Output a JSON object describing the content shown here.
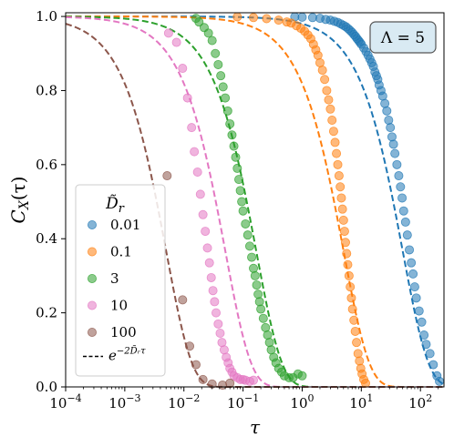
{
  "chart_data": {
    "type": "scatter",
    "xlabel": "τ",
    "ylabel": "C",
    "ylabel_sub": "X",
    "ylabel_arg": "(τ)",
    "xscale": "log",
    "xlim": [
      0.0001,
      250
    ],
    "ylim": [
      0.0,
      1.01
    ],
    "x_ticks": [
      {
        "base": "10",
        "exp": "−4",
        "value": 0.0001
      },
      {
        "base": "10",
        "exp": "−3",
        "value": 0.001
      },
      {
        "base": "10",
        "exp": "−2",
        "value": 0.01
      },
      {
        "base": "10",
        "exp": "−1",
        "value": 0.1
      },
      {
        "base": "10",
        "exp": "0",
        "value": 1
      },
      {
        "base": "10",
        "exp": "1",
        "value": 10
      },
      {
        "base": "10",
        "exp": "2",
        "value": 100
      }
    ],
    "y_ticks": [
      "0.0",
      "0.2",
      "0.4",
      "0.6",
      "0.8",
      "1.0"
    ],
    "legend": {
      "title": "D̃",
      "title_sub": "r",
      "location": "lower-left",
      "theory_label": "e",
      "theory_exp": "−2D̃ᵣτ"
    },
    "annotation": "Λ = 5",
    "theory_form": "exp(-2*Dr*tau)",
    "series": [
      {
        "name": "0.01",
        "Dr": 0.01,
        "color": "#1f77b4",
        "points": [
          [
            0.75,
            0.999
          ],
          [
            1.0,
            0.998
          ],
          [
            1.5,
            0.997
          ],
          [
            2.0,
            0.995
          ],
          [
            2.5,
            0.992
          ],
          [
            3.0,
            0.99
          ],
          [
            3.5,
            0.987
          ],
          [
            4.0,
            0.984
          ],
          [
            4.5,
            0.98
          ],
          [
            5.0,
            0.976
          ],
          [
            5.5,
            0.972
          ],
          [
            6.0,
            0.967
          ],
          [
            6.5,
            0.962
          ],
          [
            7.0,
            0.957
          ],
          [
            7.5,
            0.951
          ],
          [
            8.0,
            0.946
          ],
          [
            8.5,
            0.94
          ],
          [
            9.0,
            0.935
          ],
          [
            9.5,
            0.93
          ],
          [
            10.0,
            0.925
          ],
          [
            11.0,
            0.915
          ],
          [
            12.0,
            0.905
          ],
          [
            13.0,
            0.895
          ],
          [
            14.0,
            0.885
          ],
          [
            15.0,
            0.875
          ],
          [
            16.0,
            0.865
          ],
          [
            17.0,
            0.85
          ],
          [
            18.0,
            0.84
          ],
          [
            19.0,
            0.83
          ],
          [
            20.0,
            0.815
          ],
          [
            21.5,
            0.8
          ],
          [
            23.0,
            0.785
          ],
          [
            25.0,
            0.765
          ],
          [
            27.0,
            0.745
          ],
          [
            29.0,
            0.72
          ],
          [
            31.0,
            0.7
          ],
          [
            33.0,
            0.675
          ],
          [
            35.0,
            0.655
          ],
          [
            37.0,
            0.63
          ],
          [
            40.0,
            0.6
          ],
          [
            43.0,
            0.57
          ],
          [
            46.0,
            0.54
          ],
          [
            49.0,
            0.51
          ],
          [
            52.0,
            0.475
          ],
          [
            56.0,
            0.445
          ],
          [
            60.0,
            0.41
          ],
          [
            65.0,
            0.37
          ],
          [
            70.0,
            0.335
          ],
          [
            75.0,
            0.305
          ],
          [
            80.0,
            0.27
          ],
          [
            85.0,
            0.24
          ],
          [
            95.0,
            0.205
          ],
          [
            105.0,
            0.175
          ],
          [
            115.0,
            0.14
          ],
          [
            125.0,
            0.115
          ],
          [
            145.0,
            0.09
          ],
          [
            165.0,
            0.06
          ],
          [
            190.0,
            0.03
          ],
          [
            210.0,
            0.015
          ]
        ]
      },
      {
        "name": "0.1",
        "Dr": 0.1,
        "color": "#ff7f0e",
        "points": [
          [
            0.08,
            0.999
          ],
          [
            0.15,
            0.997
          ],
          [
            0.25,
            0.994
          ],
          [
            0.4,
            0.99
          ],
          [
            0.55,
            0.985
          ],
          [
            0.65,
            0.982
          ],
          [
            0.8,
            0.975
          ],
          [
            0.95,
            0.968
          ],
          [
            1.1,
            0.96
          ],
          [
            1.25,
            0.95
          ],
          [
            1.4,
            0.94
          ],
          [
            1.55,
            0.925
          ],
          [
            1.7,
            0.91
          ],
          [
            1.85,
            0.895
          ],
          [
            2.0,
            0.875
          ],
          [
            2.2,
            0.855
          ],
          [
            2.4,
            0.83
          ],
          [
            2.6,
            0.8
          ],
          [
            2.8,
            0.775
          ],
          [
            3.0,
            0.75
          ],
          [
            3.2,
            0.72
          ],
          [
            3.4,
            0.69
          ],
          [
            3.6,
            0.66
          ],
          [
            3.8,
            0.63
          ],
          [
            4.0,
            0.6
          ],
          [
            4.2,
            0.57
          ],
          [
            4.4,
            0.54
          ],
          [
            4.6,
            0.51
          ],
          [
            4.8,
            0.48
          ],
          [
            5.0,
            0.45
          ],
          [
            5.2,
            0.42
          ],
          [
            5.4,
            0.39
          ],
          [
            5.65,
            0.36
          ],
          [
            5.9,
            0.33
          ],
          [
            6.2,
            0.3
          ],
          [
            6.5,
            0.27
          ],
          [
            6.8,
            0.24
          ],
          [
            7.1,
            0.21
          ],
          [
            7.5,
            0.18
          ],
          [
            7.9,
            0.15
          ],
          [
            8.3,
            0.12
          ],
          [
            8.8,
            0.09
          ],
          [
            9.3,
            0.07
          ],
          [
            9.8,
            0.05
          ],
          [
            10.3,
            0.035
          ],
          [
            11.0,
            0.02
          ],
          [
            11.8,
            0.01
          ]
        ]
      },
      {
        "name": "3",
        "Dr": 3,
        "color": "#2ca02c",
        "points": [
          [
            0.016,
            0.995
          ],
          [
            0.018,
            0.985
          ],
          [
            0.022,
            0.97
          ],
          [
            0.026,
            0.955
          ],
          [
            0.03,
            0.935
          ],
          [
            0.034,
            0.9
          ],
          [
            0.038,
            0.87
          ],
          [
            0.042,
            0.84
          ],
          [
            0.046,
            0.81
          ],
          [
            0.05,
            0.78
          ],
          [
            0.055,
            0.745
          ],
          [
            0.06,
            0.71
          ],
          [
            0.065,
            0.68
          ],
          [
            0.07,
            0.65
          ],
          [
            0.075,
            0.62
          ],
          [
            0.08,
            0.59
          ],
          [
            0.085,
            0.56
          ],
          [
            0.09,
            0.53
          ],
          [
            0.095,
            0.5
          ],
          [
            0.1,
            0.475
          ],
          [
            0.11,
            0.44
          ],
          [
            0.12,
            0.41
          ],
          [
            0.13,
            0.38
          ],
          [
            0.14,
            0.35
          ],
          [
            0.15,
            0.32
          ],
          [
            0.16,
            0.3
          ],
          [
            0.17,
            0.275
          ],
          [
            0.18,
            0.25
          ],
          [
            0.19,
            0.23
          ],
          [
            0.2,
            0.21
          ],
          [
            0.22,
            0.185
          ],
          [
            0.24,
            0.16
          ],
          [
            0.26,
            0.14
          ],
          [
            0.28,
            0.12
          ],
          [
            0.3,
            0.1
          ],
          [
            0.33,
            0.08
          ],
          [
            0.36,
            0.065
          ],
          [
            0.4,
            0.05
          ],
          [
            0.45,
            0.04
          ],
          [
            0.5,
            0.03
          ],
          [
            0.6,
            0.025
          ],
          [
            0.7,
            0.025
          ],
          [
            0.85,
            0.035
          ],
          [
            1.0,
            0.03
          ]
        ]
      },
      {
        "name": "10",
        "Dr": 10,
        "color": "#e377c2",
        "points": [
          [
            0.0055,
            0.955
          ],
          [
            0.0075,
            0.93
          ],
          [
            0.0095,
            0.86
          ],
          [
            0.0115,
            0.78
          ],
          [
            0.0135,
            0.7
          ],
          [
            0.015,
            0.635
          ],
          [
            0.017,
            0.58
          ],
          [
            0.019,
            0.52
          ],
          [
            0.021,
            0.465
          ],
          [
            0.023,
            0.42
          ],
          [
            0.025,
            0.375
          ],
          [
            0.027,
            0.335
          ],
          [
            0.029,
            0.295
          ],
          [
            0.031,
            0.26
          ],
          [
            0.033,
            0.23
          ],
          [
            0.035,
            0.2
          ],
          [
            0.038,
            0.17
          ],
          [
            0.041,
            0.145
          ],
          [
            0.044,
            0.12
          ],
          [
            0.048,
            0.1
          ],
          [
            0.052,
            0.08
          ],
          [
            0.056,
            0.065
          ],
          [
            0.06,
            0.05
          ],
          [
            0.065,
            0.04
          ],
          [
            0.07,
            0.03
          ],
          [
            0.08,
            0.025
          ],
          [
            0.09,
            0.02
          ],
          [
            0.1,
            0.02
          ],
          [
            0.11,
            0.018
          ],
          [
            0.13,
            0.015
          ],
          [
            0.15,
            0.018
          ]
        ]
      },
      {
        "name": "100",
        "Dr": 100,
        "color": "#8c564b",
        "points": [
          [
            0.0052,
            0.57
          ],
          [
            0.0095,
            0.235
          ],
          [
            0.0125,
            0.11
          ],
          [
            0.016,
            0.06
          ],
          [
            0.021,
            0.02
          ],
          [
            0.03,
            0.008
          ],
          [
            0.045,
            0.005
          ],
          [
            0.06,
            0.01
          ]
        ]
      }
    ]
  }
}
